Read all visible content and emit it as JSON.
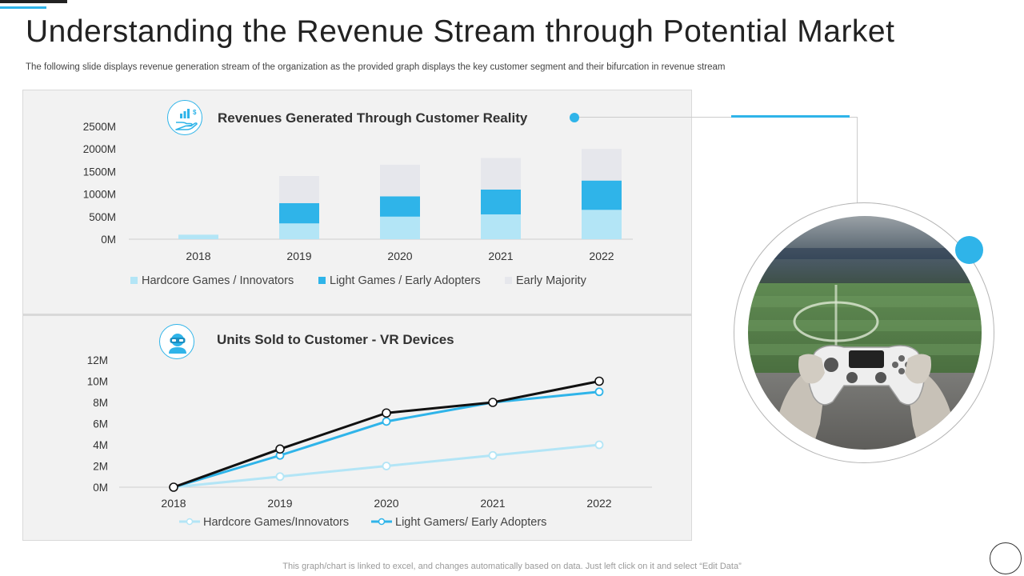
{
  "page": {
    "title": "Understanding the Revenue Stream through Potential Market",
    "subtitle": "The following slide displays revenue generation stream of the organization as the provided graph displays the key customer segment and their bifurcation in revenue stream",
    "footer": "This graph/chart is linked to excel,  and changes automatically based on data. Just left click on it and select “Edit Data”"
  },
  "colors": {
    "accent": "#2fb4e9",
    "light_blue": "#b3e5f6",
    "pale_gray": "#e6e7ec",
    "dark_line": "#111111"
  },
  "icons": {
    "revenue": "hand-money-chart-icon",
    "vr": "vr-headset-user-icon"
  },
  "chart_data": [
    {
      "type": "bar",
      "stacked": true,
      "title": "Revenues Generated Through Customer Reality",
      "categories": [
        "2018",
        "2019",
        "2020",
        "2021",
        "2022"
      ],
      "y_ticks": [
        "0M",
        "500M",
        "1000M",
        "1500M",
        "2000M",
        "2500M"
      ],
      "ylim": [
        0,
        2500
      ],
      "unit": "M",
      "legend_position": "bottom",
      "grid": false,
      "series": [
        {
          "name": "Hardcore Games / Innovators",
          "color": "#b3e5f6",
          "values": [
            100,
            350,
            500,
            550,
            650
          ]
        },
        {
          "name": "Light Games / Early Adopters",
          "color": "#2fb4e9",
          "values": [
            0,
            450,
            450,
            550,
            650
          ]
        },
        {
          "name": "Early Majority",
          "color": "#e6e7ec",
          "values": [
            0,
            600,
            700,
            700,
            700
          ]
        }
      ]
    },
    {
      "type": "line",
      "title": "Units Sold to Customer  - VR Devices",
      "categories": [
        "2018",
        "2019",
        "2020",
        "2021",
        "2022"
      ],
      "y_ticks": [
        "0M",
        "2M",
        "4M",
        "6M",
        "8M",
        "10M",
        "12M"
      ],
      "ylim": [
        0,
        12
      ],
      "unit": "M",
      "legend_position": "bottom",
      "grid": false,
      "series": [
        {
          "name": "Hardcore Games/Innovators",
          "color": "#b3e5f6",
          "values": [
            0,
            1,
            2,
            3,
            4
          ],
          "in_legend": true
        },
        {
          "name": "Light Gamers/ Early Adopters",
          "color": "#2fb4e9",
          "values": [
            0,
            3,
            6.2,
            8,
            9
          ],
          "in_legend": true
        },
        {
          "name": "",
          "color": "#111111",
          "values": [
            0,
            3.6,
            7,
            8,
            10
          ],
          "in_legend": false
        }
      ]
    }
  ]
}
